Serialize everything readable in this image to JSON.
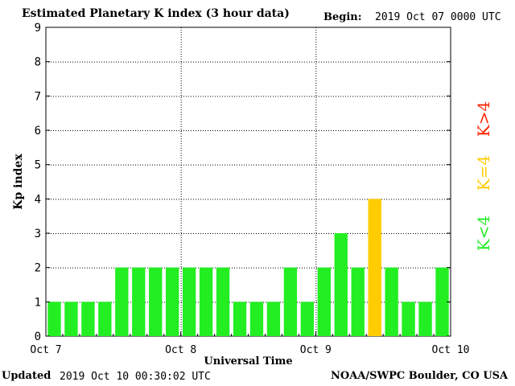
{
  "header": {
    "begin_label": "Begin:",
    "begin_value": "2019 Oct 07 0000 UTC"
  },
  "footer": {
    "updated_label": "Updated",
    "updated_value": "2019 Oct 10 00:30:02 UTC",
    "credit": "NOAA/SWPC Boulder, CO USA"
  },
  "colors": {
    "below_storm": "#22ee22",
    "storm_level_4": "#ffcc00",
    "above_storm": "#ff2200"
  },
  "chart_data": {
    "type": "bar",
    "title": "Estimated Planetary K index (3 hour data)",
    "xlabel": "Universal Time",
    "ylabel": "Kp index",
    "ylim": [
      0,
      9
    ],
    "yticks": [
      "0",
      "1",
      "2",
      "3",
      "4",
      "5",
      "6",
      "7",
      "8",
      "9"
    ],
    "xticks": [
      "Oct 7",
      "Oct 8",
      "Oct 9",
      "Oct 10"
    ],
    "grid": true,
    "values": [
      1,
      1,
      1,
      1,
      2,
      2,
      2,
      2,
      2,
      2,
      2,
      1,
      1,
      1,
      2,
      1,
      2,
      3,
      2,
      4,
      2,
      1,
      1,
      2
    ],
    "legend": [
      {
        "label": "K<4",
        "color": "#22ee22"
      },
      {
        "label": "K=4",
        "color": "#ffcc00"
      },
      {
        "label": "K>4",
        "color": "#ff2200"
      }
    ]
  }
}
